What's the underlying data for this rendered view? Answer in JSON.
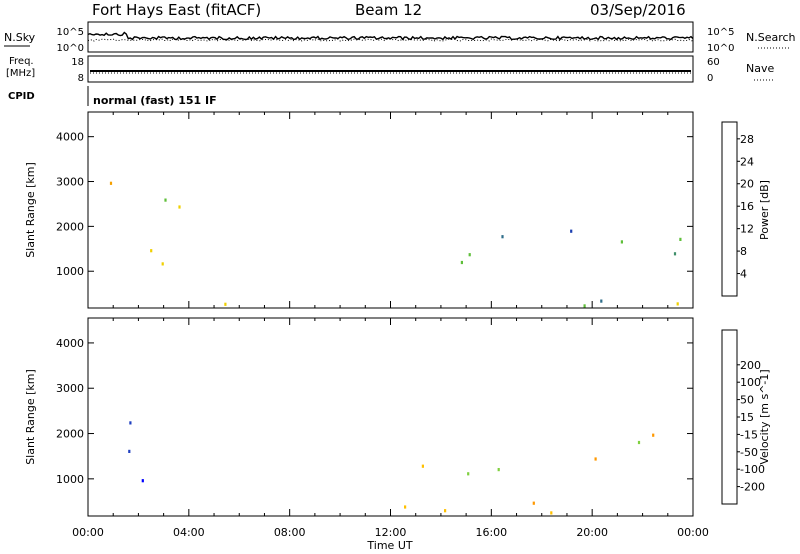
{
  "header": {
    "station": "Fort Hays East (fitACF)",
    "beam": "Beam 12",
    "date": "03/Sep/2016"
  },
  "noise_panel": {
    "left_label": "N.Sky",
    "left_ticks": [
      "10^5",
      "10^0"
    ],
    "right_label": "N.Search",
    "right_ticks": [
      "10^5",
      "10^0"
    ]
  },
  "freq_panel": {
    "left_label_1": "Freq.",
    "left_label_2": "[MHz]",
    "left_ticks": [
      "18",
      "8"
    ],
    "right_label": "Nave",
    "right_ticks": [
      "60",
      "0"
    ]
  },
  "cpid": {
    "label": "CPID",
    "value": "normal (fast) 151 IF"
  },
  "colors": {
    "power_scale": [
      "#0000ff",
      "#1c3fb0",
      "#2f6e8a",
      "#3f8f6a",
      "#5fbf3a",
      "#f0d000",
      "#f6a000",
      "#f07000",
      "#ee0000"
    ],
    "velocity_scale": [
      "#ff0000",
      "#ff5a00",
      "#ff9800",
      "#ffc000",
      "#c0c0c0",
      "#c0c0c0",
      "#80d040",
      "#40a040",
      "#2040c0",
      "#0000ff"
    ]
  },
  "chart_data": [
    {
      "type": "heatmap",
      "name": "power",
      "ylabel": "Slant Range [km]",
      "ylim": [
        180,
        4550
      ],
      "yticks": [
        "1000",
        "2000",
        "3000",
        "4000"
      ],
      "xlim": [
        0,
        24
      ],
      "colorbar_label": "Power [dB]",
      "colorbar_ticks": [
        "4",
        "8",
        "12",
        "16",
        "20",
        "24",
        "28"
      ],
      "colorbar_range": [
        0,
        31
      ],
      "echo_regions": [
        {
          "t0": 0.3,
          "t1": 3.6,
          "r0": 700,
          "r1": 3300,
          "value": 18
        },
        {
          "t0": 13.2,
          "t1": 20.0,
          "r0": 1000,
          "r1": 2100,
          "value": 10
        },
        {
          "t0": 19.8,
          "t1": 24.0,
          "r0": 1200,
          "r1": 2500,
          "value": 16
        },
        {
          "t0": 0.0,
          "t1": 24.0,
          "r0": 180,
          "r1": 450,
          "value": 14
        }
      ]
    },
    {
      "type": "heatmap",
      "name": "velocity",
      "ylabel": "Slant Range [km]",
      "ylim": [
        180,
        4550
      ],
      "yticks": [
        "1000",
        "2000",
        "3000",
        "4000"
      ],
      "xlim": [
        0,
        24
      ],
      "xticks": [
        "00:00",
        "04:00",
        "08:00",
        "12:00",
        "16:00",
        "20:00",
        "00:00"
      ],
      "xlabel": "Time UT",
      "colorbar_label": "Velocity [m s^-1]",
      "colorbar_ticks": [
        "-200",
        "-100",
        "-50",
        "-15",
        "15",
        "50",
        "100",
        "200"
      ],
      "echo_regions": [
        {
          "t0": 0.6,
          "t1": 3.2,
          "r0": 800,
          "r1": 2900,
          "value": 200
        },
        {
          "t0": 13.2,
          "t1": 20.5,
          "r0": 1000,
          "r1": 2100,
          "value": 0
        },
        {
          "t0": 19.8,
          "t1": 24.0,
          "r0": 1300,
          "r1": 2300,
          "value": -20
        },
        {
          "t0": 4.5,
          "t1": 19.0,
          "r0": 180,
          "r1": 700,
          "value": -40
        }
      ]
    }
  ]
}
